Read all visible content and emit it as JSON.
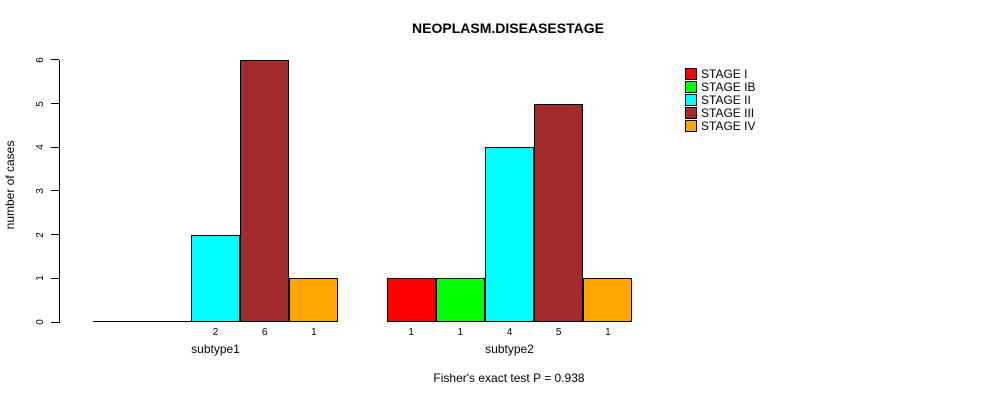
{
  "chart_data": {
    "type": "bar",
    "title": "NEOPLASM.DISEASESTAGE",
    "xlabel": "",
    "ylabel": "number of cases",
    "ylim": [
      0,
      6
    ],
    "yticks": [
      0,
      1,
      2,
      3,
      4,
      5,
      6
    ],
    "grid": false,
    "legend_position": "top-right",
    "categories": [
      "subtype1",
      "subtype2"
    ],
    "series": [
      {
        "name": "STAGE I",
        "color": "#FF0000",
        "values": [
          0,
          1
        ]
      },
      {
        "name": "STAGE IB",
        "color": "#00FF00",
        "values": [
          0,
          1
        ]
      },
      {
        "name": "STAGE II",
        "color": "#00FFFF",
        "values": [
          2,
          4
        ]
      },
      {
        "name": "STAGE III",
        "color": "#A52A2A",
        "values": [
          6,
          5
        ]
      },
      {
        "name": "STAGE IV",
        "color": "#FFA500",
        "values": [
          1,
          1
        ]
      }
    ],
    "bar_value_labels": {
      "subtype1": [
        null,
        null,
        2,
        6,
        1
      ],
      "subtype2": [
        1,
        1,
        4,
        5,
        1
      ]
    },
    "annotation": "Fisher's exact test P = 0.938",
    "colors": {
      "bar_border": "#000000",
      "axis": "#000000",
      "background": "#ffffff",
      "text": "#000000"
    }
  }
}
